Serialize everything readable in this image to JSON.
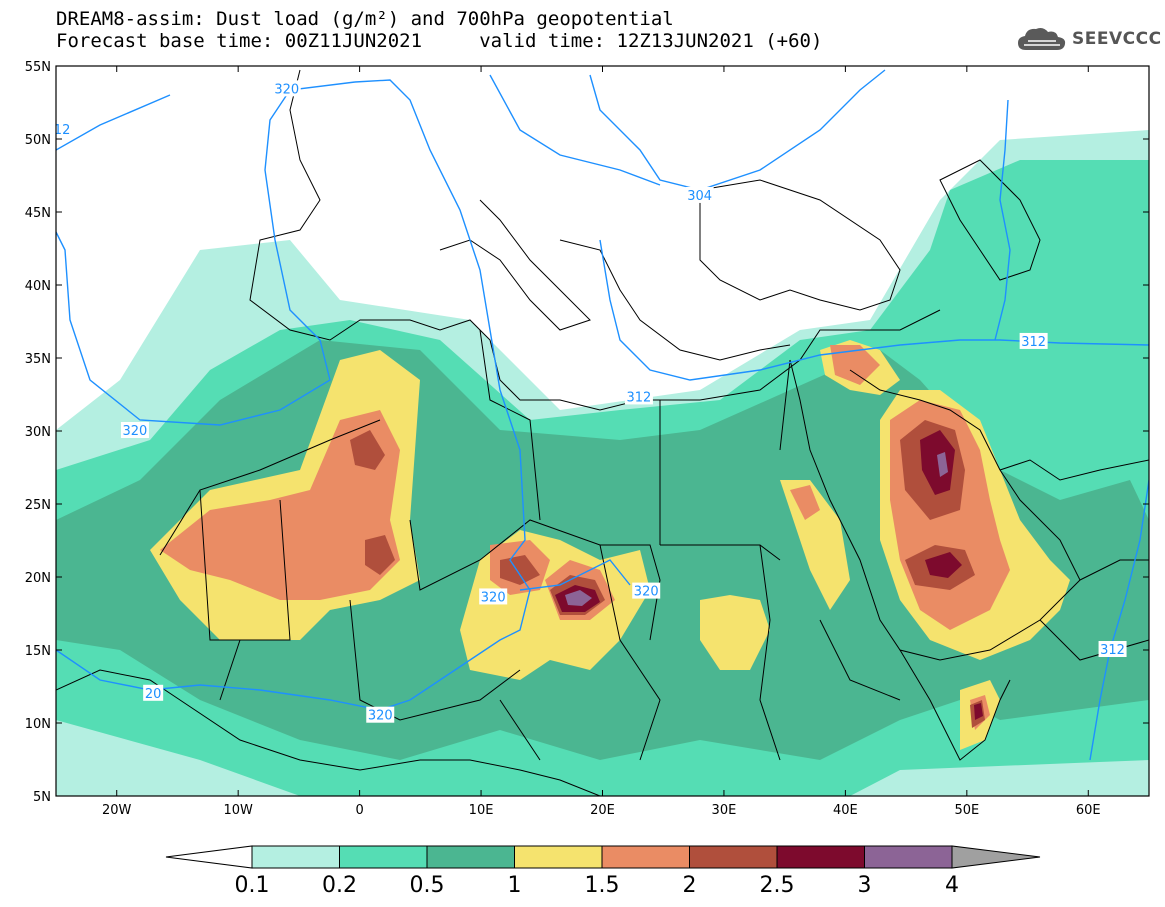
{
  "header": {
    "line1": "DREAM8-assim: Dust load (g/m²) and 700hPa geopotential",
    "line2": "Forecast base time: 00Z11JUN2021     valid time: 12Z13JUN2021 (+60)"
  },
  "logo": {
    "text": "SEEVCCC",
    "icon": "cloud-icon"
  },
  "map": {
    "lon_range": [
      -25,
      65
    ],
    "lat_range": [
      5,
      55
    ],
    "lon_ticks": [
      {
        "lon": -20,
        "label": "20W"
      },
      {
        "lon": -10,
        "label": "10W"
      },
      {
        "lon": 0,
        "label": "0"
      },
      {
        "lon": 10,
        "label": "10E"
      },
      {
        "lon": 20,
        "label": "20E"
      },
      {
        "lon": 30,
        "label": "30E"
      },
      {
        "lon": 40,
        "label": "40E"
      },
      {
        "lon": 50,
        "label": "50E"
      },
      {
        "lon": 60,
        "label": "60E"
      }
    ],
    "lat_ticks": [
      {
        "lat": 55,
        "label": "55N"
      },
      {
        "lat": 50,
        "label": "50N"
      },
      {
        "lat": 45,
        "label": "45N"
      },
      {
        "lat": 40,
        "label": "40N"
      },
      {
        "lat": 35,
        "label": "35N"
      },
      {
        "lat": 30,
        "label": "30N"
      },
      {
        "lat": 25,
        "label": "25N"
      },
      {
        "lat": 20,
        "label": "20N"
      },
      {
        "lat": 15,
        "label": "15N"
      },
      {
        "lat": 10,
        "label": "10N"
      },
      {
        "lat": 5,
        "label": "5N"
      }
    ],
    "contour_labels": [
      {
        "text": "320",
        "lon": -6,
        "lat": 53.4
      },
      {
        "text": "12",
        "lon": -24.5,
        "lat": 50.6
      },
      {
        "text": "304",
        "lon": 28,
        "lat": 46.1
      },
      {
        "text": "312",
        "lon": 55.5,
        "lat": 36.1
      },
      {
        "text": "312",
        "lon": 23,
        "lat": 32.3
      },
      {
        "text": "320",
        "lon": -18.5,
        "lat": 30
      },
      {
        "text": "320",
        "lon": 11,
        "lat": 18.6
      },
      {
        "text": "320",
        "lon": 23.6,
        "lat": 19
      },
      {
        "text": "312",
        "lon": 62,
        "lat": 15
      },
      {
        "text": "20",
        "lon": -17,
        "lat": 12
      },
      {
        "text": "320",
        "lon": 1.7,
        "lat": 10.5
      }
    ]
  },
  "colorbar": {
    "colors": [
      "#b4efe1",
      "#55ddb4",
      "#4bb691",
      "#f5e36e",
      "#ea8c64",
      "#b04f3c",
      "#7d0a2d",
      "#8c6496"
    ],
    "labels": [
      "0.1",
      "0.2",
      "0.5",
      "1",
      "1.5",
      "2",
      "2.5",
      "3",
      "4"
    ]
  },
  "colors": {
    "contour": "#1e90ff",
    "border": "#000000",
    "land_bg": "#ffffff"
  }
}
